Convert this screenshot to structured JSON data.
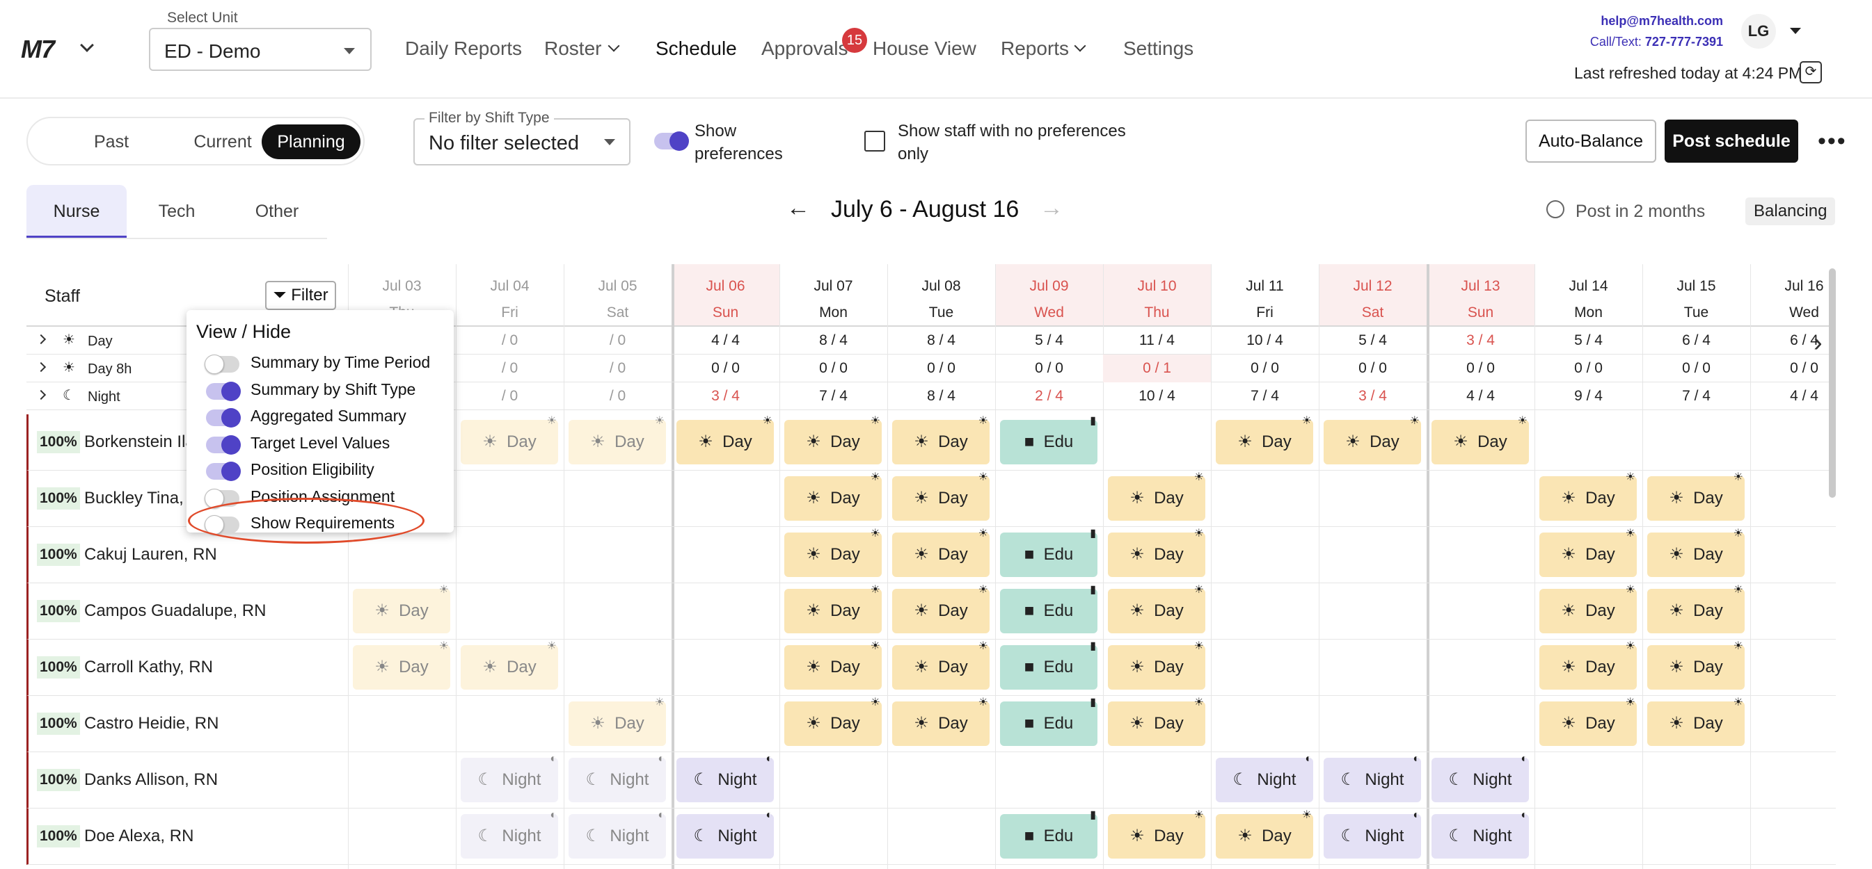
{
  "header": {
    "logo": "M7",
    "unit_label": "Select Unit",
    "unit_value": "ED - Demo",
    "nav": [
      "Daily Reports",
      "Roster",
      "Schedule",
      "Approvals",
      "House View",
      "Reports",
      "Settings"
    ],
    "approvals_badge": "15",
    "help_email": "help@m7health.com",
    "call_label": "Call/Text: ",
    "call_number": "727-777-7391",
    "avatar": "LG",
    "refreshed": "Last refreshed today at 4:24 PM"
  },
  "toolbar": {
    "periods": [
      "Past",
      "Current",
      "Planning"
    ],
    "filter_label": "Filter by Shift Type",
    "filter_value": "No filter selected",
    "show_pref_line1": "Show",
    "show_pref_line2": "preferences",
    "no_pref_line1": "Show staff with no preferences",
    "no_pref_line2": "only",
    "auto_balance": "Auto-Balance",
    "post_schedule": "Post schedule",
    "more": "•••"
  },
  "roles": [
    "Nurse",
    "Tech",
    "Other"
  ],
  "range": "July 6 - August 16",
  "post_in": "Post in 2 months",
  "balancing": "Balancing",
  "grid": {
    "staff_header": "Staff",
    "filter_button": "Filter",
    "dates": [
      {
        "d": "Jul 03",
        "w": "Thu",
        "past": true,
        "we": false
      },
      {
        "d": "Jul 04",
        "w": "Fri",
        "past": true,
        "we": false
      },
      {
        "d": "Jul 05",
        "w": "Sat",
        "past": true,
        "we": false
      },
      {
        "d": "Jul 06",
        "w": "Sun",
        "past": false,
        "we": true
      },
      {
        "d": "Jul 07",
        "w": "Mon",
        "past": false,
        "we": false
      },
      {
        "d": "Jul 08",
        "w": "Tue",
        "past": false,
        "we": false
      },
      {
        "d": "Jul 09",
        "w": "Wed",
        "past": false,
        "we": true
      },
      {
        "d": "Jul 10",
        "w": "Thu",
        "past": false,
        "we": true
      },
      {
        "d": "Jul 11",
        "w": "Fri",
        "past": false,
        "we": false
      },
      {
        "d": "Jul 12",
        "w": "Sat",
        "past": false,
        "we": true
      },
      {
        "d": "Jul 13",
        "w": "Sun",
        "past": false,
        "we": true
      },
      {
        "d": "Jul 14",
        "w": "Mon",
        "past": false,
        "we": false
      },
      {
        "d": "Jul 15",
        "w": "Tue",
        "past": false,
        "we": false
      },
      {
        "d": "Jul 16",
        "w": "Wed",
        "past": false,
        "we": false
      }
    ],
    "summary_rows": [
      {
        "label": "Day",
        "icon": "sun",
        "cells": [
          {
            "v": "",
            "r": false
          },
          {
            "v": "/ 0",
            "r": false
          },
          {
            "v": "/ 0",
            "r": false
          },
          {
            "v": "4 / 4",
            "r": false
          },
          {
            "v": "8 / 4",
            "r": false
          },
          {
            "v": "8 / 4",
            "r": false
          },
          {
            "v": "5 / 4",
            "r": false
          },
          {
            "v": "11 / 4",
            "r": false
          },
          {
            "v": "10 / 4",
            "r": false
          },
          {
            "v": "5 / 4",
            "r": false
          },
          {
            "v": "3 / 4",
            "r": true
          },
          {
            "v": "5 / 4",
            "r": false
          },
          {
            "v": "6 / 4",
            "r": false
          },
          {
            "v": "6 / 4",
            "r": false
          }
        ]
      },
      {
        "label": "Day 8h",
        "icon": "sun",
        "cells": [
          {
            "v": "",
            "r": false
          },
          {
            "v": "/ 0",
            "r": false
          },
          {
            "v": "/ 0",
            "r": false
          },
          {
            "v": "0 / 0",
            "r": false
          },
          {
            "v": "0 / 0",
            "r": false
          },
          {
            "v": "0 / 0",
            "r": false
          },
          {
            "v": "0 / 0",
            "r": false
          },
          {
            "v": "0 / 1",
            "r": true
          },
          {
            "v": "0 / 0",
            "r": false
          },
          {
            "v": "0 / 0",
            "r": false
          },
          {
            "v": "0 / 0",
            "r": false
          },
          {
            "v": "0 / 0",
            "r": false
          },
          {
            "v": "0 / 0",
            "r": false
          },
          {
            "v": "0 / 0",
            "r": false
          }
        ]
      },
      {
        "label": "Night",
        "icon": "moon",
        "cells": [
          {
            "v": "",
            "r": false
          },
          {
            "v": "/ 0",
            "r": false
          },
          {
            "v": "/ 0",
            "r": false
          },
          {
            "v": "3 / 4",
            "r": true
          },
          {
            "v": "7 / 4",
            "r": false
          },
          {
            "v": "8 / 4",
            "r": false
          },
          {
            "v": "2 / 4",
            "r": true
          },
          {
            "v": "10 / 4",
            "r": false
          },
          {
            "v": "7 / 4",
            "r": false
          },
          {
            "v": "3 / 4",
            "r": true
          },
          {
            "v": "4 / 4",
            "r": false
          },
          {
            "v": "9 / 4",
            "r": false
          },
          {
            "v": "7 / 4",
            "r": false
          },
          {
            "v": "4 / 4",
            "r": false
          }
        ]
      }
    ],
    "staff": [
      {
        "pct": "100%",
        "name": "Borkenstein Ila",
        "shifts": [
          "",
          "Day",
          "Day",
          "Day",
          "Day",
          "Day",
          "Edu",
          "",
          "Day",
          "Day",
          "Day",
          "",
          "",
          ""
        ]
      },
      {
        "pct": "100%",
        "name": "Buckley Tina,",
        "shifts": [
          "",
          "",
          "",
          "",
          "Day",
          "Day",
          "",
          "Day",
          "",
          "",
          "",
          "Day",
          "Day",
          ""
        ]
      },
      {
        "pct": "100%",
        "name": "Cakuj Lauren, RN",
        "shifts": [
          "",
          "",
          "",
          "",
          "Day",
          "Day",
          "Edu",
          "Day",
          "",
          "",
          "",
          "Day",
          "Day",
          ""
        ]
      },
      {
        "pct": "100%",
        "name": "Campos Guadalupe, RN",
        "shifts": [
          "Day",
          "",
          "",
          "",
          "Day",
          "Day",
          "Edu",
          "Day",
          "",
          "",
          "",
          "Day",
          "Day",
          ""
        ]
      },
      {
        "pct": "100%",
        "name": "Carroll Kathy, RN",
        "shifts": [
          "Day",
          "Day",
          "",
          "",
          "Day",
          "Day",
          "Edu",
          "Day",
          "",
          "",
          "",
          "Day",
          "Day",
          ""
        ]
      },
      {
        "pct": "100%",
        "name": "Castro Heidie, RN",
        "shifts": [
          "",
          "",
          "Day",
          "",
          "Day",
          "Day",
          "Edu",
          "Day",
          "",
          "",
          "",
          "Day",
          "Day",
          ""
        ]
      },
      {
        "pct": "100%",
        "name": "Danks Allison, RN",
        "shifts": [
          "",
          "Night",
          "Night",
          "Night",
          "",
          "",
          "",
          "",
          "Night",
          "Night",
          "Night",
          "",
          "",
          ""
        ]
      },
      {
        "pct": "100%",
        "name": "Doe Alexa, RN",
        "shifts": [
          "",
          "Night",
          "Night",
          "Night",
          "",
          "",
          "Edu",
          "Day",
          "Day",
          "Night",
          "Night",
          "",
          "",
          ""
        ]
      }
    ]
  },
  "popup": {
    "title": "View / Hide",
    "items": [
      {
        "label": "Summary by Time Period",
        "on": false
      },
      {
        "label": "Summary by Shift Type",
        "on": true
      },
      {
        "label": "Aggregated Summary",
        "on": true
      },
      {
        "label": "Target Level Values",
        "on": true
      },
      {
        "label": "Position Eligibility",
        "on": true
      },
      {
        "label": "Position Assignment",
        "on": false
      },
      {
        "label": "Show Requirements",
        "on": false
      }
    ]
  },
  "colors": {
    "accent": "#4f42c6",
    "red": "#d9534f",
    "day": "#fae5b4",
    "night": "#e4e1f5",
    "edu": "#b8e2d6"
  }
}
